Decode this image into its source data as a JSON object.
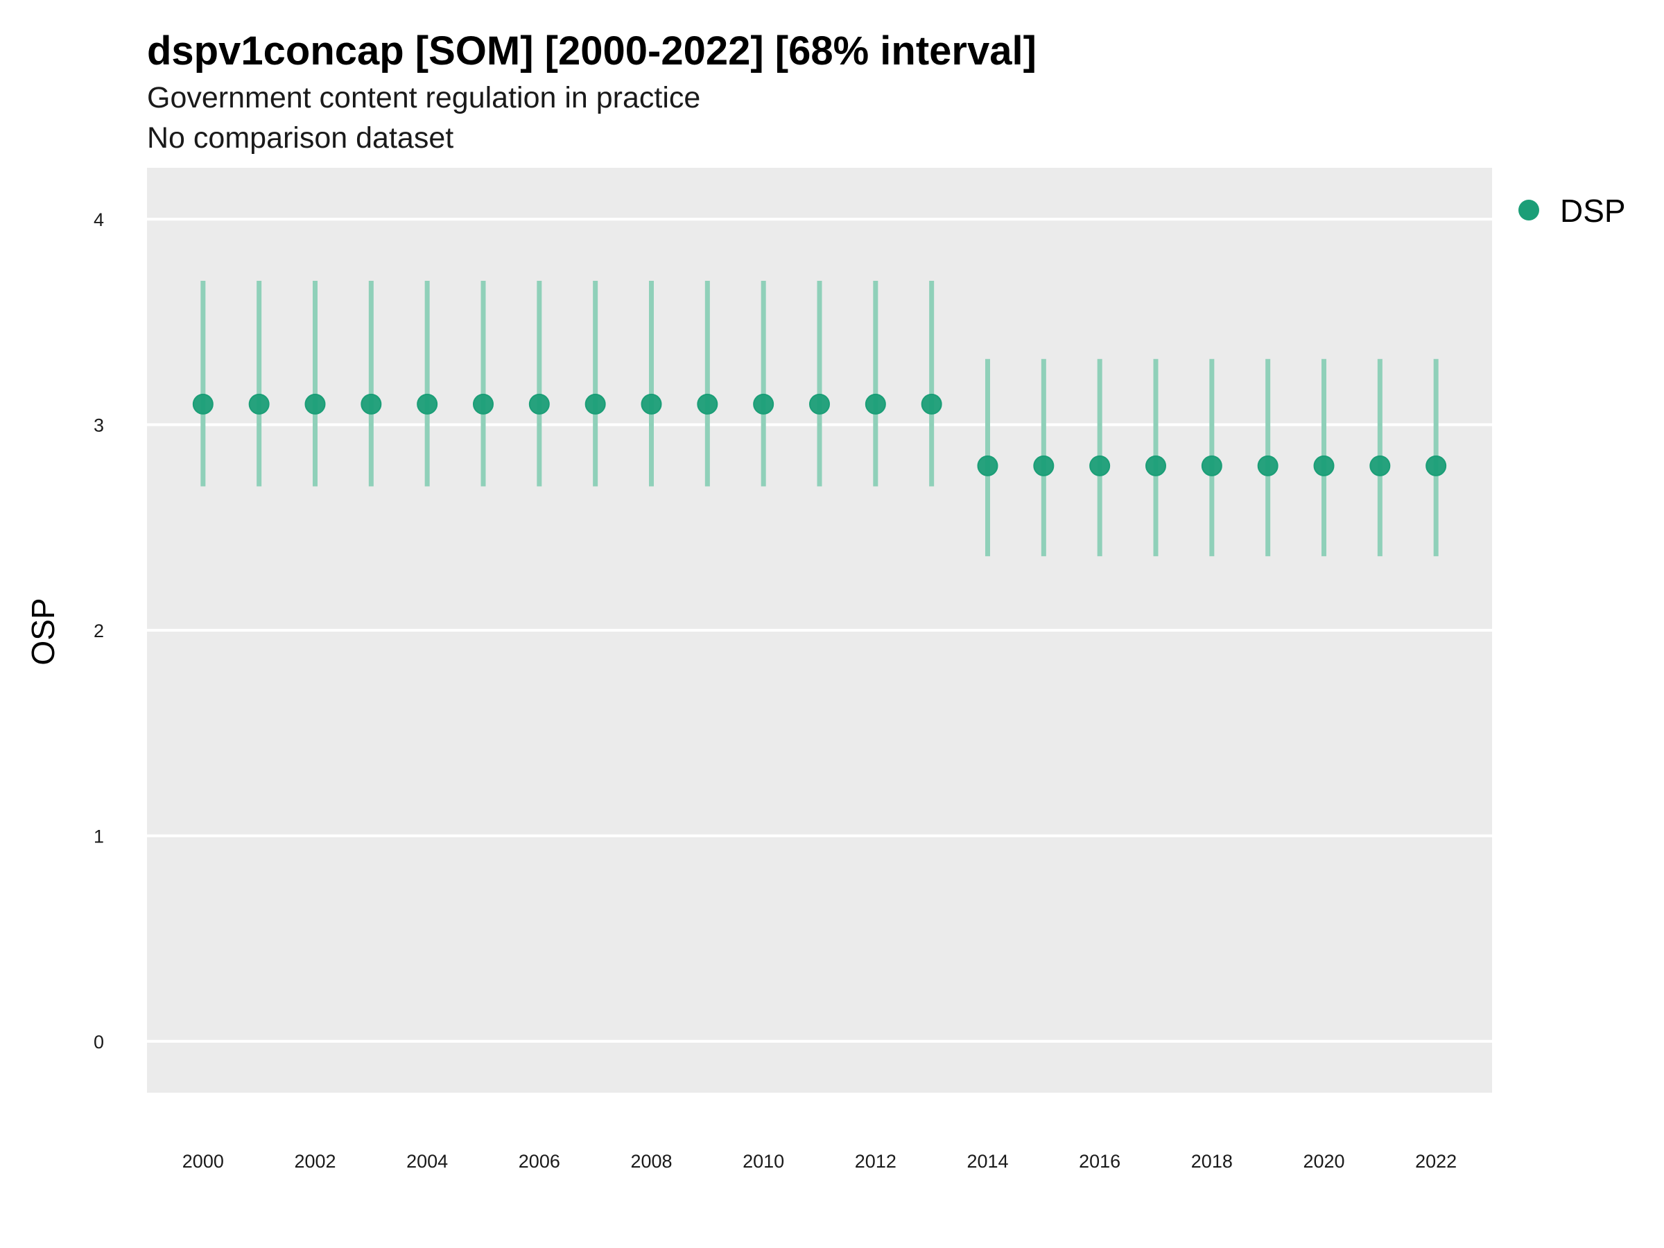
{
  "chart_data": {
    "type": "scatter",
    "title": "dspv1concap [SOM] [2000-2022] [68% interval]",
    "subtitle": "Government content regulation in practice",
    "subtitle2": "No comparison dataset",
    "xlabel": "",
    "ylabel": "OSP",
    "xlim": [
      1999,
      2023
    ],
    "ylim": [
      -0.25,
      4.25
    ],
    "x_ticks": [
      2000,
      2002,
      2004,
      2006,
      2008,
      2010,
      2012,
      2014,
      2016,
      2018,
      2020,
      2022
    ],
    "y_ticks": [
      0,
      1,
      2,
      3,
      4
    ],
    "grid": true,
    "legend_position": "right",
    "series": [
      {
        "name": "DSP",
        "color": "#1b9e77",
        "x": [
          2000,
          2001,
          2002,
          2003,
          2004,
          2005,
          2006,
          2007,
          2008,
          2009,
          2010,
          2011,
          2012,
          2013,
          2014,
          2015,
          2016,
          2017,
          2018,
          2019,
          2020,
          2021,
          2022
        ],
        "y": [
          3.1,
          3.1,
          3.1,
          3.1,
          3.1,
          3.1,
          3.1,
          3.1,
          3.1,
          3.1,
          3.1,
          3.1,
          3.1,
          3.1,
          2.8,
          2.8,
          2.8,
          2.8,
          2.8,
          2.8,
          2.8,
          2.8,
          2.8
        ],
        "lower": [
          2.7,
          2.7,
          2.7,
          2.7,
          2.7,
          2.7,
          2.7,
          2.7,
          2.7,
          2.7,
          2.7,
          2.7,
          2.7,
          2.7,
          2.36,
          2.36,
          2.36,
          2.36,
          2.36,
          2.36,
          2.36,
          2.36,
          2.36
        ],
        "upper": [
          3.7,
          3.7,
          3.7,
          3.7,
          3.7,
          3.7,
          3.7,
          3.7,
          3.7,
          3.7,
          3.7,
          3.7,
          3.7,
          3.7,
          3.32,
          3.32,
          3.32,
          3.32,
          3.32,
          3.32,
          3.32,
          3.32,
          3.32
        ]
      }
    ],
    "colors": {
      "panel_background": "#ebebeb",
      "gridline": "#ffffff",
      "interval": "#8fd0b9",
      "point": "#1b9e77"
    }
  }
}
